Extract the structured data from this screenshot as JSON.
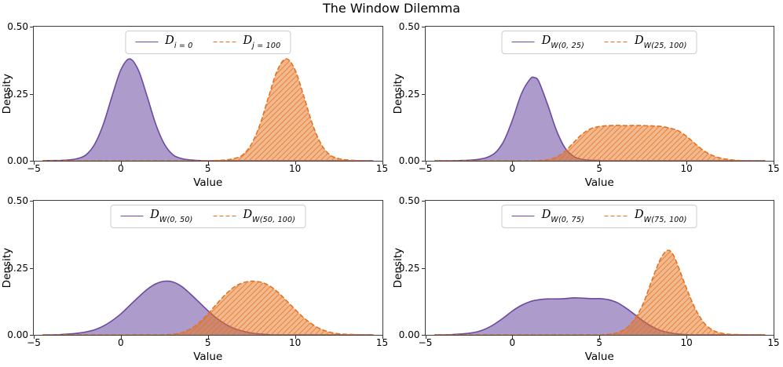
{
  "figure": {
    "title": "The Window Dilemma",
    "background": "#ffffff",
    "accent_purple": "#6a4aa1",
    "accent_orange": "#e6711e"
  },
  "chart_data": [
    {
      "type": "area",
      "position": "top-left",
      "xlabel": "Value",
      "ylabel": "Density",
      "xlim": [
        -5,
        15
      ],
      "ylim": [
        0,
        0.5
      ],
      "x_ticks": [
        -5,
        0,
        5,
        10,
        15
      ],
      "x_tick_labels": [
        "−5",
        "0",
        "5",
        "10",
        "15"
      ],
      "y_ticks": [
        0,
        0.25,
        0.5
      ],
      "y_tick_labels": [
        "0.00",
        "0.25",
        "0.50"
      ],
      "grid": false,
      "legend_position": "upper center",
      "series": [
        {
          "label_base": "D",
          "label_sub": "i = 0",
          "color": "#6a4aa1",
          "line_style": "solid",
          "fill": true,
          "fill_alpha": 0.55,
          "hatch": "",
          "points": [
            [
              -4.5,
              0
            ],
            [
              -4,
              0.001
            ],
            [
              -3.5,
              0.001
            ],
            [
              -3,
              0.003
            ],
            [
              -2.5,
              0.008
            ],
            [
              -2,
              0.022
            ],
            [
              -1.5,
              0.062
            ],
            [
              -1,
              0.137
            ],
            [
              -0.5,
              0.242
            ],
            [
              0,
              0.339
            ],
            [
              0.5,
              0.38
            ],
            [
              1,
              0.339
            ],
            [
              1.5,
              0.242
            ],
            [
              2,
              0.137
            ],
            [
              2.5,
              0.062
            ],
            [
              3,
              0.022
            ],
            [
              3.5,
              0.008
            ],
            [
              4,
              0.003
            ],
            [
              4.5,
              0.001
            ],
            [
              5,
              0
            ],
            [
              9,
              0
            ],
            [
              14.5,
              0
            ]
          ]
        },
        {
          "label_base": "D",
          "label_sub": "j = 100",
          "color": "#e6711e",
          "line_style": "dashed",
          "fill": true,
          "fill_alpha": 0.5,
          "hatch": "/",
          "points": [
            [
              -4.5,
              0
            ],
            [
              0,
              0
            ],
            [
              4.5,
              0
            ],
            [
              5,
              0
            ],
            [
              5.5,
              0.001
            ],
            [
              6,
              0.003
            ],
            [
              6.5,
              0.008
            ],
            [
              7,
              0.022
            ],
            [
              7.5,
              0.062
            ],
            [
              8,
              0.137
            ],
            [
              8.5,
              0.242
            ],
            [
              9,
              0.339
            ],
            [
              9.5,
              0.38
            ],
            [
              10,
              0.339
            ],
            [
              10.5,
              0.242
            ],
            [
              11,
              0.137
            ],
            [
              11.5,
              0.062
            ],
            [
              12,
              0.022
            ],
            [
              12.5,
              0.008
            ],
            [
              13,
              0.003
            ],
            [
              13.5,
              0.001
            ],
            [
              14,
              0
            ],
            [
              14.5,
              0
            ]
          ]
        }
      ]
    },
    {
      "type": "area",
      "position": "top-right",
      "xlabel": "Value",
      "ylabel": "Density",
      "xlim": [
        -5,
        15
      ],
      "ylim": [
        0,
        0.5
      ],
      "x_ticks": [
        -5,
        0,
        5,
        10,
        15
      ],
      "x_tick_labels": [
        "−5",
        "0",
        "5",
        "10",
        "15"
      ],
      "y_ticks": [
        0,
        0.25,
        0.5
      ],
      "y_tick_labels": [
        "0.00",
        "0.25",
        "0.50"
      ],
      "grid": false,
      "legend_position": "upper center",
      "series": [
        {
          "label_base": "D",
          "label_sub": "W(0, 25)",
          "color": "#6a4aa1",
          "line_style": "solid",
          "fill": true,
          "fill_alpha": 0.55,
          "hatch": "",
          "points": [
            [
              -4.5,
              0
            ],
            [
              -3.5,
              0
            ],
            [
              -3,
              0.001
            ],
            [
              -2.5,
              0.002
            ],
            [
              -2,
              0.005
            ],
            [
              -1.5,
              0.012
            ],
            [
              -1,
              0.03
            ],
            [
              -0.5,
              0.075
            ],
            [
              0,
              0.155
            ],
            [
              0.5,
              0.25
            ],
            [
              1,
              0.305
            ],
            [
              1.25,
              0.31
            ],
            [
              1.5,
              0.295
            ],
            [
              2,
              0.21
            ],
            [
              2.5,
              0.115
            ],
            [
              3,
              0.048
            ],
            [
              3.5,
              0.016
            ],
            [
              4,
              0.005
            ],
            [
              4.5,
              0.002
            ],
            [
              5,
              0.001
            ],
            [
              5.5,
              0
            ],
            [
              10,
              0
            ],
            [
              14.5,
              0
            ]
          ]
        },
        {
          "label_base": "D",
          "label_sub": "W(25, 100)",
          "color": "#e6711e",
          "line_style": "dashed",
          "fill": true,
          "fill_alpha": 0.5,
          "hatch": "/",
          "points": [
            [
              -4.5,
              0
            ],
            [
              -1,
              0
            ],
            [
              0.5,
              0
            ],
            [
              1,
              0
            ],
            [
              1.5,
              0.001
            ],
            [
              2,
              0.004
            ],
            [
              2.5,
              0.013
            ],
            [
              3,
              0.035
            ],
            [
              3.5,
              0.068
            ],
            [
              4,
              0.1
            ],
            [
              4.5,
              0.12
            ],
            [
              5,
              0.128
            ],
            [
              5.5,
              0.131
            ],
            [
              6,
              0.132
            ],
            [
              6.5,
              0.131
            ],
            [
              7,
              0.132
            ],
            [
              7.5,
              0.131
            ],
            [
              8,
              0.13
            ],
            [
              8.5,
              0.128
            ],
            [
              9,
              0.122
            ],
            [
              9.5,
              0.112
            ],
            [
              10,
              0.09
            ],
            [
              10.5,
              0.062
            ],
            [
              11,
              0.036
            ],
            [
              11.5,
              0.019
            ],
            [
              12,
              0.009
            ],
            [
              12.5,
              0.004
            ],
            [
              13,
              0.001
            ],
            [
              13.5,
              0
            ],
            [
              14.5,
              0
            ]
          ]
        }
      ]
    },
    {
      "type": "area",
      "position": "bottom-left",
      "xlabel": "Value",
      "ylabel": "Density",
      "xlim": [
        -5,
        15
      ],
      "ylim": [
        0,
        0.5
      ],
      "x_ticks": [
        -5,
        0,
        5,
        10,
        15
      ],
      "x_tick_labels": [
        "−5",
        "0",
        "5",
        "10",
        "15"
      ],
      "y_ticks": [
        0,
        0.25,
        0.5
      ],
      "y_tick_labels": [
        "0.00",
        "0.25",
        "0.50"
      ],
      "grid": false,
      "legend_position": "upper center",
      "series": [
        {
          "label_base": "D",
          "label_sub": "W(0, 50)",
          "color": "#6a4aa1",
          "line_style": "solid",
          "fill": true,
          "fill_alpha": 0.55,
          "hatch": "",
          "points": [
            [
              -4.5,
              0
            ],
            [
              -4,
              0
            ],
            [
              -3.5,
              0.001
            ],
            [
              -3,
              0.003
            ],
            [
              -2.5,
              0.006
            ],
            [
              -2,
              0.011
            ],
            [
              -1.5,
              0.019
            ],
            [
              -1,
              0.033
            ],
            [
              -0.5,
              0.053
            ],
            [
              0,
              0.078
            ],
            [
              0.5,
              0.109
            ],
            [
              1,
              0.14
            ],
            [
              1.5,
              0.169
            ],
            [
              2,
              0.19
            ],
            [
              2.5,
              0.2
            ],
            [
              3,
              0.197
            ],
            [
              3.5,
              0.18
            ],
            [
              4,
              0.152
            ],
            [
              4.5,
              0.121
            ],
            [
              5,
              0.09
            ],
            [
              5.5,
              0.062
            ],
            [
              6,
              0.04
            ],
            [
              6.5,
              0.024
            ],
            [
              7,
              0.014
            ],
            [
              7.5,
              0.007
            ],
            [
              8,
              0.003
            ],
            [
              8.5,
              0.001
            ],
            [
              9,
              0
            ],
            [
              14.5,
              0
            ]
          ]
        },
        {
          "label_base": "D",
          "label_sub": "W(50, 100)",
          "color": "#e6711e",
          "line_style": "dashed",
          "fill": true,
          "fill_alpha": 0.5,
          "hatch": "/",
          "points": [
            [
              -4.5,
              0
            ],
            [
              0,
              0
            ],
            [
              2,
              0
            ],
            [
              2.5,
              0
            ],
            [
              3,
              0.002
            ],
            [
              3.5,
              0.008
            ],
            [
              4,
              0.022
            ],
            [
              4.5,
              0.045
            ],
            [
              5,
              0.078
            ],
            [
              5.5,
              0.115
            ],
            [
              6,
              0.15
            ],
            [
              6.5,
              0.178
            ],
            [
              7,
              0.194
            ],
            [
              7.5,
              0.2
            ],
            [
              8,
              0.197
            ],
            [
              8.5,
              0.184
            ],
            [
              9,
              0.16
            ],
            [
              9.5,
              0.128
            ],
            [
              10,
              0.095
            ],
            [
              10.5,
              0.064
            ],
            [
              11,
              0.039
            ],
            [
              11.5,
              0.021
            ],
            [
              12,
              0.01
            ],
            [
              12.5,
              0.004
            ],
            [
              13,
              0.002
            ],
            [
              13.5,
              0.001
            ],
            [
              14,
              0
            ],
            [
              14.5,
              0
            ]
          ]
        }
      ]
    },
    {
      "type": "area",
      "position": "bottom-right",
      "xlabel": "Value",
      "ylabel": "Density",
      "xlim": [
        -5,
        15
      ],
      "ylim": [
        0,
        0.5
      ],
      "x_ticks": [
        -5,
        0,
        5,
        10,
        15
      ],
      "x_tick_labels": [
        "−5",
        "0",
        "5",
        "10",
        "15"
      ],
      "y_ticks": [
        0,
        0.25,
        0.5
      ],
      "y_tick_labels": [
        "0.00",
        "0.25",
        "0.50"
      ],
      "grid": false,
      "legend_position": "upper center",
      "series": [
        {
          "label_base": "D",
          "label_sub": "W(0, 75)",
          "color": "#6a4aa1",
          "line_style": "solid",
          "fill": true,
          "fill_alpha": 0.55,
          "hatch": "",
          "points": [
            [
              -4.5,
              0
            ],
            [
              -4,
              0
            ],
            [
              -3.5,
              0.001
            ],
            [
              -3,
              0.003
            ],
            [
              -2.5,
              0.006
            ],
            [
              -2,
              0.012
            ],
            [
              -1.5,
              0.024
            ],
            [
              -1,
              0.042
            ],
            [
              -0.5,
              0.065
            ],
            [
              0,
              0.09
            ],
            [
              0.5,
              0.11
            ],
            [
              1,
              0.124
            ],
            [
              1.5,
              0.131
            ],
            [
              2,
              0.134
            ],
            [
              2.5,
              0.134
            ],
            [
              3,
              0.135
            ],
            [
              3.5,
              0.138
            ],
            [
              4,
              0.137
            ],
            [
              4.5,
              0.135
            ],
            [
              5,
              0.135
            ],
            [
              5.5,
              0.131
            ],
            [
              6,
              0.12
            ],
            [
              6.5,
              0.1
            ],
            [
              7,
              0.076
            ],
            [
              7.5,
              0.051
            ],
            [
              8,
              0.031
            ],
            [
              8.5,
              0.016
            ],
            [
              9,
              0.008
            ],
            [
              9.5,
              0.003
            ],
            [
              10,
              0.001
            ],
            [
              10.5,
              0
            ],
            [
              14.5,
              0
            ]
          ]
        },
        {
          "label_base": "D",
          "label_sub": "W(75, 100)",
          "color": "#e6711e",
          "line_style": "dashed",
          "fill": true,
          "fill_alpha": 0.5,
          "hatch": "/",
          "points": [
            [
              -4.5,
              0
            ],
            [
              0,
              0
            ],
            [
              4,
              0
            ],
            [
              5,
              0
            ],
            [
              5.5,
              0.002
            ],
            [
              6,
              0.008
            ],
            [
              6.5,
              0.024
            ],
            [
              7,
              0.058
            ],
            [
              7.5,
              0.118
            ],
            [
              8,
              0.205
            ],
            [
              8.5,
              0.285
            ],
            [
              8.9,
              0.315
            ],
            [
              9.2,
              0.3
            ],
            [
              9.5,
              0.255
            ],
            [
              10,
              0.17
            ],
            [
              10.5,
              0.095
            ],
            [
              11,
              0.043
            ],
            [
              11.5,
              0.017
            ],
            [
              12,
              0.006
            ],
            [
              12.5,
              0.002
            ],
            [
              13,
              0.001
            ],
            [
              13.5,
              0
            ],
            [
              14.5,
              0
            ]
          ]
        }
      ]
    }
  ]
}
